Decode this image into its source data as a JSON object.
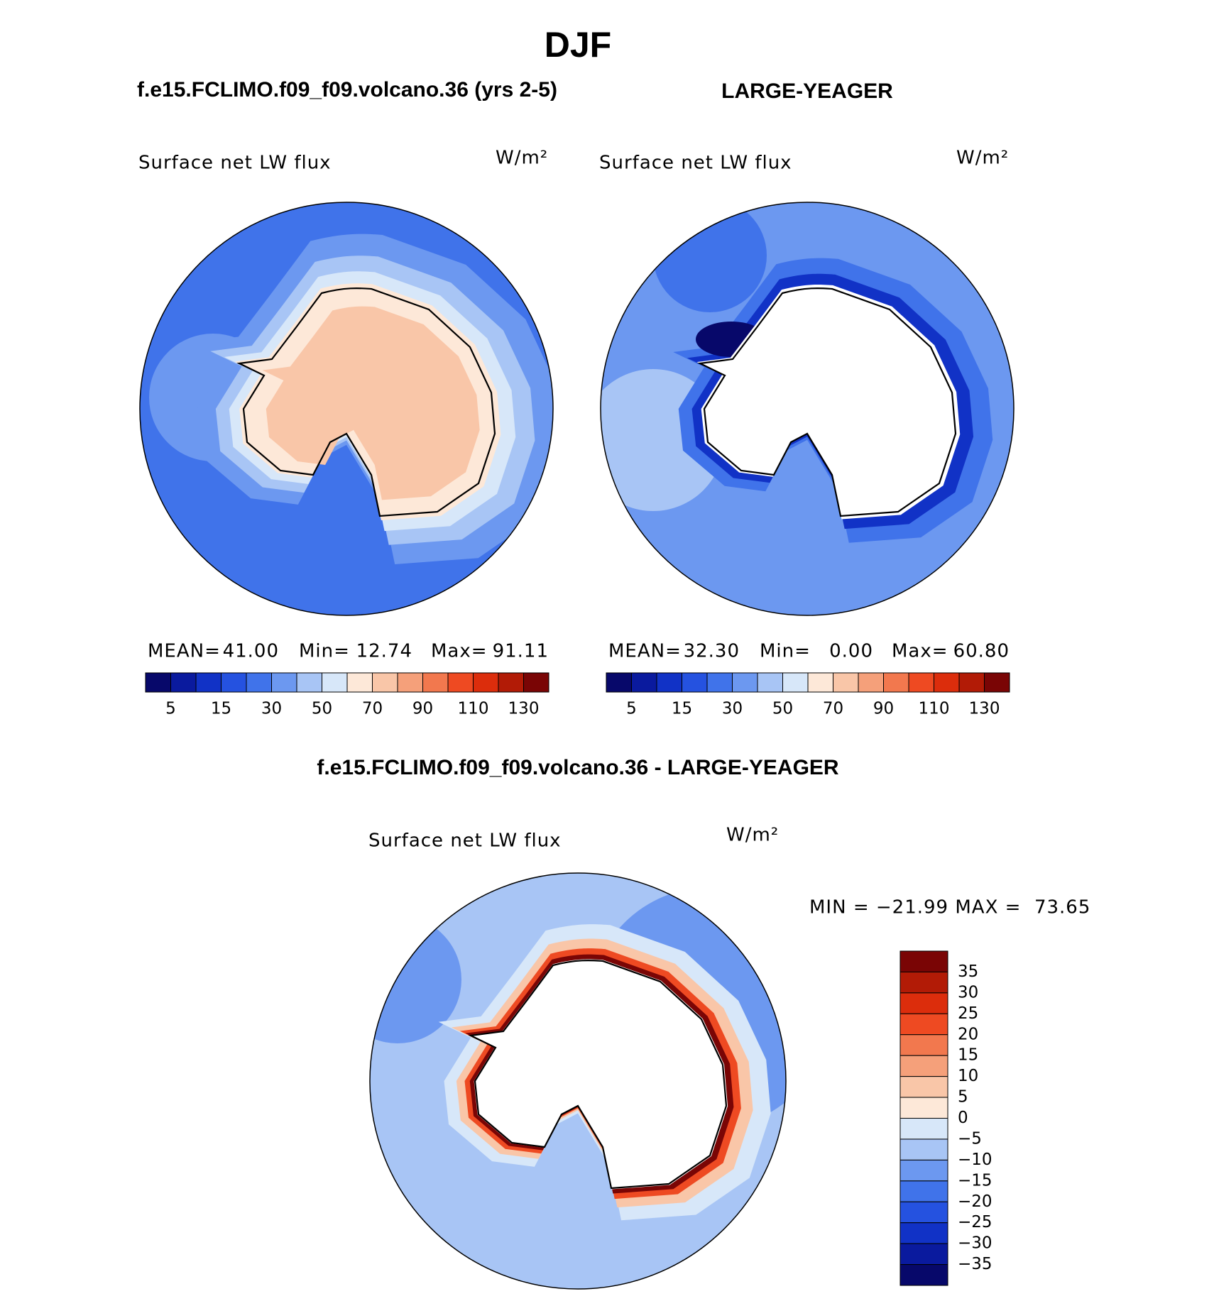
{
  "title": "DJF",
  "panels": [
    {
      "title": "f.e15.FCLIMO.f09_f09.volcano.36 (yrs 2-5)",
      "variable": "Surface net LW flux",
      "units": "W/m²",
      "stats": {
        "mean_label": "MEAN=",
        "mean": "41.00",
        "min_label": "Min=",
        "min": "12.74",
        "max_label": "Max=",
        "max": "91.11"
      }
    },
    {
      "title": "LARGE-YEAGER",
      "variable": "Surface net LW flux",
      "units": "W/m²",
      "stats": {
        "mean_label": "MEAN=",
        "mean": "32.30",
        "min_label": "Min=",
        "min": "0.00",
        "max_label": "Max=",
        "max": "60.80"
      }
    }
  ],
  "colorbar": {
    "labels": [
      "5",
      "15",
      "30",
      "50",
      "70",
      "90",
      "110",
      "130"
    ],
    "colors": [
      "#07086a",
      "#0a1a9e",
      "#1132c6",
      "#2552e0",
      "#4073ea",
      "#6c98f0",
      "#a8c5f5",
      "#d7e7f9",
      "#fde8d8",
      "#f9c6a8",
      "#f5a07a",
      "#f2784e",
      "#ee4a22",
      "#dc2d0c",
      "#b21b06",
      "#7a0505"
    ]
  },
  "difference": {
    "title": "f.e15.FCLIMO.f09_f09.volcano.36 - LARGE-YEAGER",
    "variable": "Surface net LW flux",
    "units": "W/m²",
    "stats": "MIN = −21.99 MAX =  73.65",
    "colorbar": {
      "labels": [
        "35",
        "30",
        "25",
        "20",
        "15",
        "10",
        "5",
        "0",
        "−5",
        "−10",
        "−15",
        "−20",
        "−25",
        "−30",
        "−35"
      ],
      "colors": [
        "#7a0505",
        "#b21b06",
        "#dc2d0c",
        "#ee4a22",
        "#f2784e",
        "#f5a07a",
        "#f9c6a8",
        "#fde8d8",
        "#d7e7f9",
        "#a8c5f5",
        "#6c98f0",
        "#4073ea",
        "#2552e0",
        "#1132c6",
        "#0a1a9e",
        "#07086a"
      ]
    }
  }
}
